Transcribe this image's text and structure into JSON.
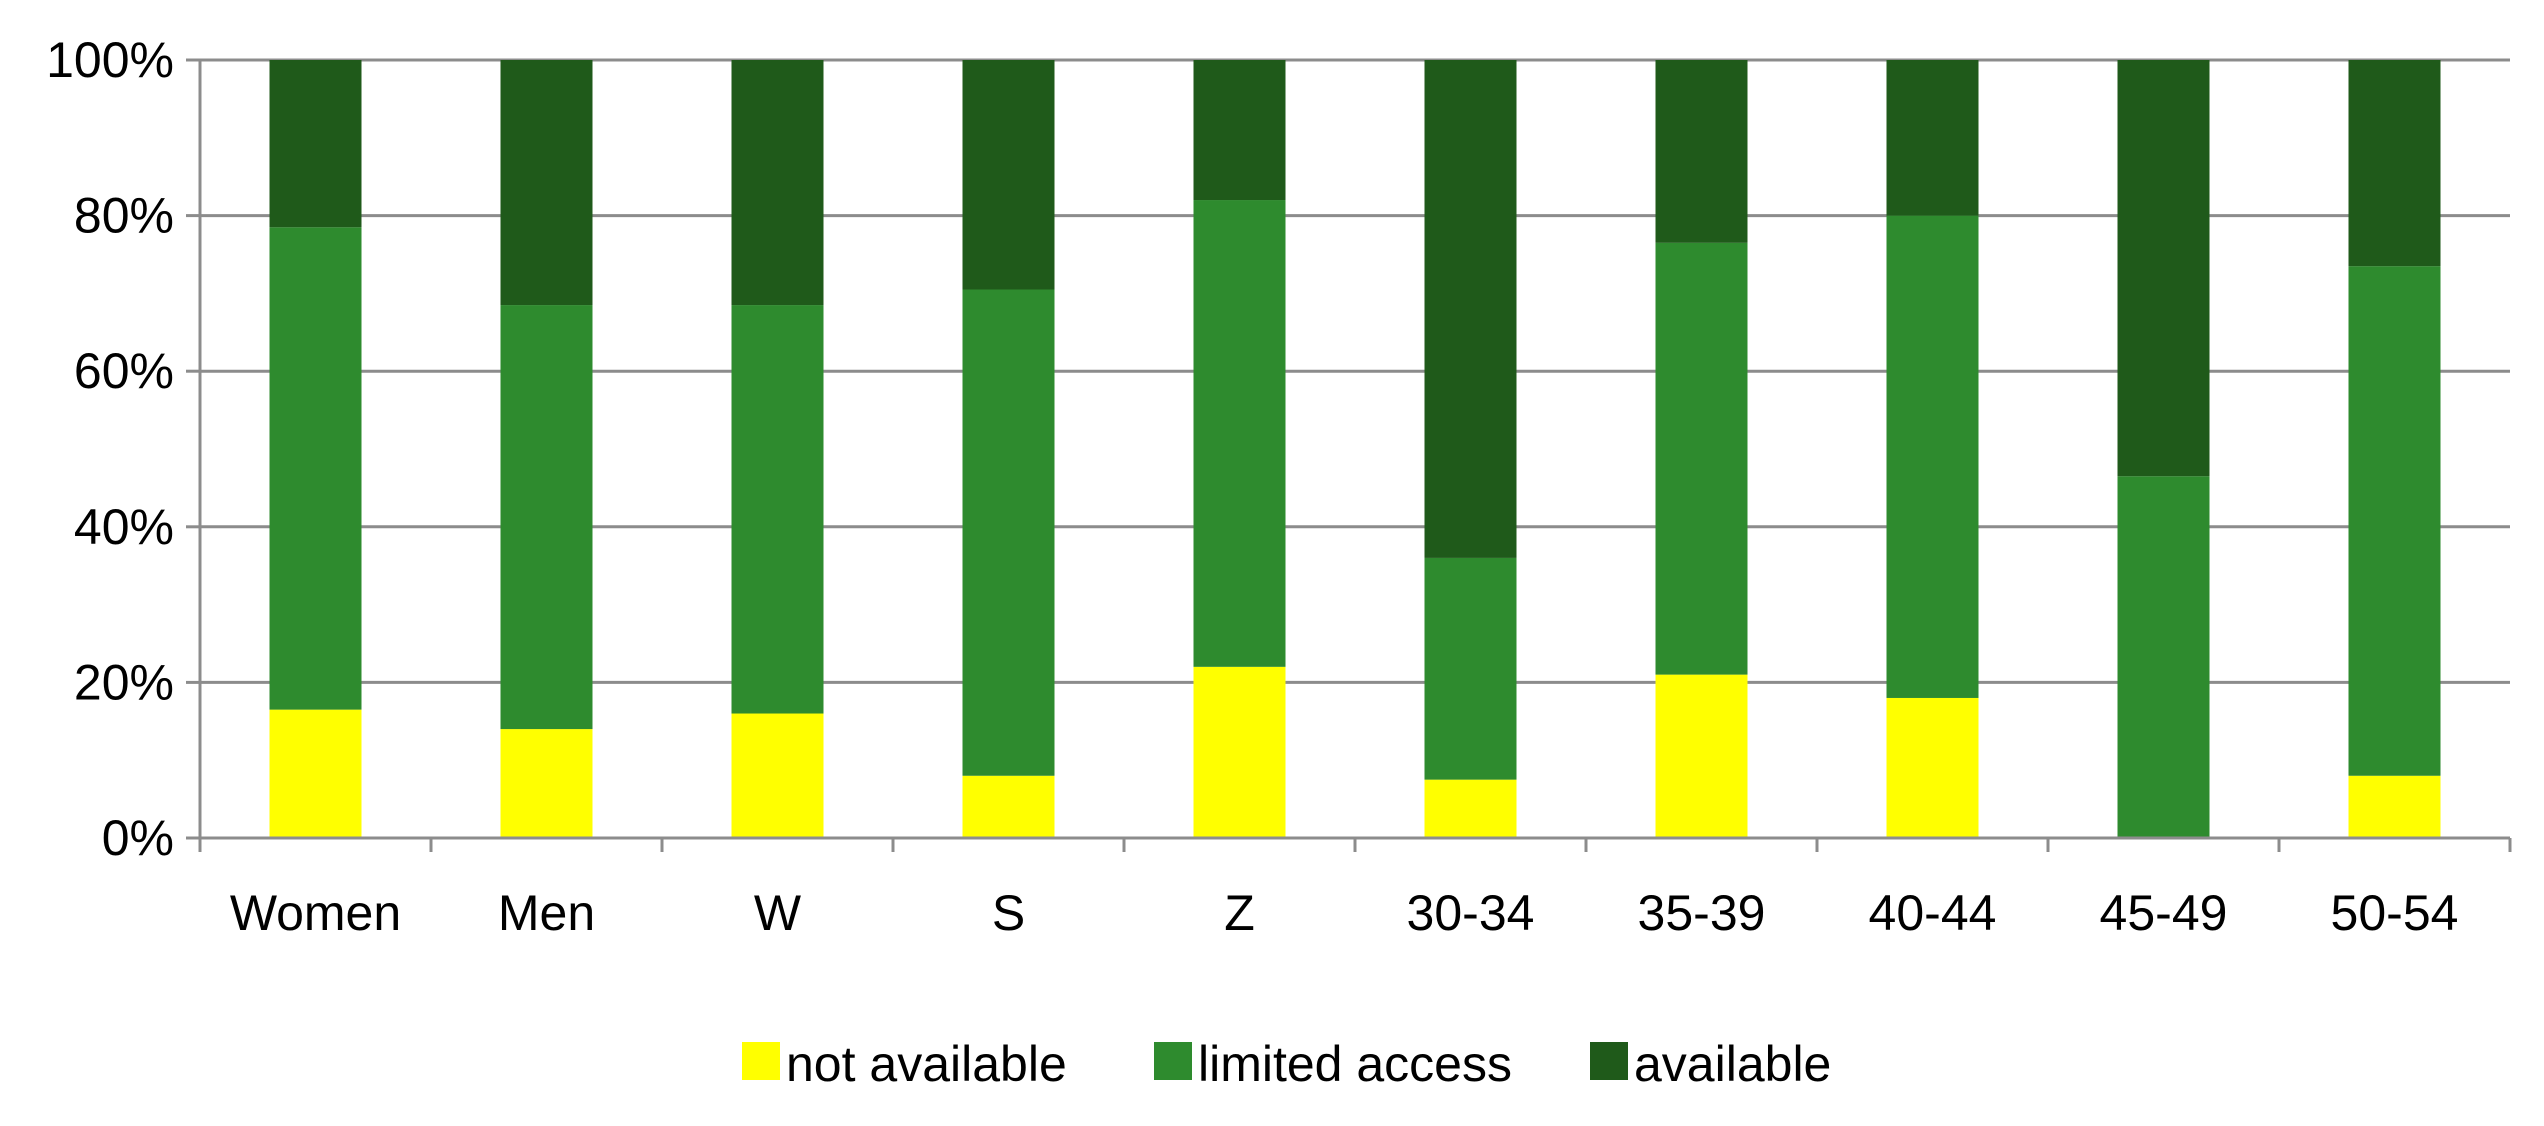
{
  "chart_data": {
    "type": "bar",
    "stacked": true,
    "percent": true,
    "title": "",
    "xlabel": "",
    "ylabel": "",
    "ylim": [
      0,
      100
    ],
    "y_ticks": [
      "0%",
      "20%",
      "40%",
      "60%",
      "80%",
      "100%"
    ],
    "grid": true,
    "legend_position": "bottom",
    "categories": [
      "Women",
      "Men",
      "W",
      "S",
      "Z",
      "30-34",
      "35-39",
      "40-44",
      "45-49",
      "50-54"
    ],
    "series": [
      {
        "name": "not available",
        "color": "#ffff00",
        "values": [
          16.5,
          14,
          16,
          8,
          22,
          7.5,
          21,
          18,
          0,
          8
        ]
      },
      {
        "name": "limited access",
        "color": "#2e8b2e",
        "values": [
          62,
          54.5,
          52.5,
          62.5,
          60,
          28.5,
          55.5,
          62,
          46.5,
          65.5
        ]
      },
      {
        "name": "available",
        "color": "#1f5a1a",
        "values": [
          21.5,
          31.5,
          31.5,
          29.5,
          18,
          64,
          23.5,
          20,
          53.5,
          26.5
        ]
      }
    ]
  }
}
